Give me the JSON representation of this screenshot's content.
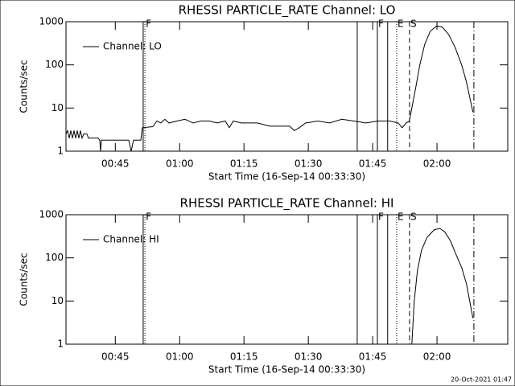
{
  "chart_data": [
    {
      "type": "line",
      "title": "RHESSI PARTICLE_RATE Channel: LO",
      "xlabel": "Start Time (16-Sep-14 00:33:30)",
      "ylabel": "Counts/sec",
      "log_y": true,
      "ylim": [
        1,
        1000
      ],
      "yticks": [
        1,
        10,
        100,
        1000
      ],
      "xlim": [
        33.5,
        136.5
      ],
      "xticks": [
        {
          "value": 45,
          "label": "00:45"
        },
        {
          "value": 60,
          "label": "01:00"
        },
        {
          "value": 75,
          "label": "01:15"
        },
        {
          "value": 90,
          "label": "01:30"
        },
        {
          "value": 105,
          "label": "01:45"
        },
        {
          "value": 120,
          "label": "02:00"
        }
      ],
      "x": [
        33.5,
        33.88,
        34.25,
        34.63,
        35,
        35.38,
        35.75,
        36.13,
        36.5,
        36.88,
        37.25,
        37.63,
        38.38,
        38.75,
        41,
        41.38,
        41.56,
        41.75,
        44.38,
        48.13,
        48.69,
        49.25,
        50.94,
        51.31,
        53.75,
        54.69,
        55.63,
        56.56,
        57.5,
        59.38,
        61.25,
        63.13,
        65,
        66.88,
        68.75,
        70.63,
        71.56,
        72.5,
        74.38,
        78.13,
        80.94,
        85.63,
        86.75,
        87.88,
        89.38,
        92.19,
        95,
        97.81,
        100.63,
        103.44,
        106.25,
        109.06,
        110.94,
        111.88,
        112.81,
        113.56,
        114.13,
        115.06,
        116,
        117.13,
        118.44,
        119.94,
        121.25,
        122.75,
        124.25,
        125.75,
        126.88,
        128.38
      ],
      "series": [
        {
          "name": "Channel: LO",
          "color": "#000000",
          "values": [
            2.5,
            3,
            2,
            3,
            2,
            3,
            2,
            3,
            2,
            3,
            2,
            2.5,
            2.5,
            2,
            2,
            1.8,
            1,
            1.8,
            1.8,
            1.8,
            1,
            1.8,
            1.8,
            3.5,
            3.7,
            5,
            4.5,
            5.5,
            4.5,
            5,
            5.5,
            4.5,
            5,
            5,
            4.5,
            5,
            3.5,
            5,
            4.5,
            4.5,
            3.8,
            3.8,
            3,
            3.5,
            4.5,
            5,
            4.5,
            5.5,
            5,
            4.5,
            5,
            5,
            4.5,
            3.5,
            4.5,
            5,
            10,
            30,
            100,
            300,
            600,
            800,
            750,
            500,
            250,
            100,
            40,
            8
          ]
        }
      ],
      "markers": [
        {
          "x": 51.5,
          "style": "solid"
        },
        {
          "x": 51.9,
          "style": "dotted",
          "label": "F"
        },
        {
          "x": 101.4,
          "style": "solid"
        },
        {
          "x": 106.1,
          "style": "solid",
          "label": "F"
        },
        {
          "x": 108.5,
          "style": "solid"
        },
        {
          "x": 110.6,
          "style": "dotted",
          "label": "E"
        },
        {
          "x": 113.6,
          "style": "dashed",
          "label": "S"
        },
        {
          "x": 128.6,
          "style": "dashdot"
        }
      ]
    },
    {
      "type": "line",
      "title": "RHESSI PARTICLE_RATE Channel: HI",
      "xlabel": "Start Time (16-Sep-14 00:33:30)",
      "ylabel": "Counts/sec",
      "log_y": true,
      "ylim": [
        1,
        1000
      ],
      "yticks": [
        1,
        10,
        100,
        1000
      ],
      "xlim": [
        33.5,
        136.5
      ],
      "xticks": [
        {
          "value": 45,
          "label": "00:45"
        },
        {
          "value": 60,
          "label": "01:00"
        },
        {
          "value": 75,
          "label": "01:15"
        },
        {
          "value": 90,
          "label": "01:30"
        },
        {
          "value": 105,
          "label": "01:45"
        },
        {
          "value": 120,
          "label": "02:00"
        }
      ],
      "x": [
        114.13,
        114.69,
        115.44,
        116.38,
        117.69,
        119.38,
        120.69,
        121.81,
        123.13,
        124.44,
        125.75,
        126.88,
        128.38
      ],
      "series": [
        {
          "name": "Channel: HI",
          "color": "#000000",
          "values": [
            1,
            10,
            50,
            150,
            300,
            450,
            480,
            400,
            250,
            120,
            60,
            25,
            4
          ]
        }
      ],
      "markers": [
        {
          "x": 51.5,
          "style": "solid"
        },
        {
          "x": 51.9,
          "style": "dotted",
          "label": "F"
        },
        {
          "x": 101.4,
          "style": "solid"
        },
        {
          "x": 106.1,
          "style": "solid",
          "label": "F"
        },
        {
          "x": 108.5,
          "style": "solid"
        },
        {
          "x": 110.6,
          "style": "dotted",
          "label": "E"
        },
        {
          "x": 113.6,
          "style": "dashed",
          "label": "S"
        },
        {
          "x": 128.6,
          "style": "dashdot"
        }
      ]
    }
  ],
  "footer": "20-Oct-2021 01:47"
}
